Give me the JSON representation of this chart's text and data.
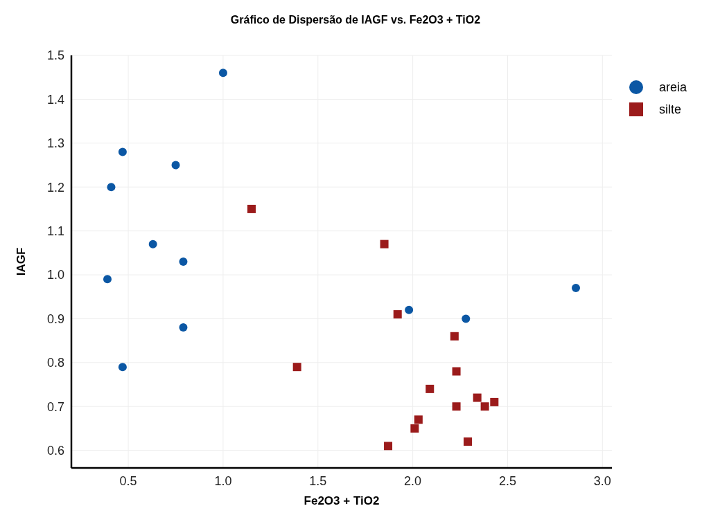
{
  "chart_data": {
    "type": "scatter",
    "title": "Gráfico de Dispersão de IAGF vs. Fe2O3 + TiO2",
    "xlabel": "Fe2O3 + TiO2",
    "ylabel": "IAGF",
    "xlim": [
      0.2,
      3.05
    ],
    "xticks": [
      {
        "value": 0.5,
        "label": "0.5"
      },
      {
        "value": 1,
        "label": "1.0"
      },
      {
        "value": 1.5,
        "label": "1.5"
      },
      {
        "value": 2,
        "label": "2.0"
      },
      {
        "value": 2.5,
        "label": "2.5"
      },
      {
        "value": 3,
        "label": "3.0"
      }
    ],
    "ylim": [
      0.56,
      1.5
    ],
    "yticks": [
      {
        "value": 0.6,
        "label": "0.6"
      },
      {
        "value": 0.7,
        "label": "0.7"
      },
      {
        "value": 0.8,
        "label": "0.8"
      },
      {
        "value": 0.9,
        "label": "0.9"
      },
      {
        "value": 1,
        "label": "1.0"
      },
      {
        "value": 1.1,
        "label": "1.1"
      },
      {
        "value": 1.2,
        "label": "1.2"
      },
      {
        "value": 1.3,
        "label": "1.3"
      },
      {
        "value": 1.4,
        "label": "1.4"
      },
      {
        "value": 1.5,
        "label": "1.5"
      }
    ],
    "grid": true,
    "legend": "top right",
    "series": [
      {
        "name": "areia",
        "color": "#0b57a4",
        "marker": "circle",
        "x": [
          1.0,
          0.47,
          0.75,
          0.41,
          0.63,
          0.79,
          0.39,
          0.79,
          0.47,
          1.98,
          2.28,
          2.86
        ],
        "values": [
          1.46,
          1.28,
          1.25,
          1.2,
          1.07,
          1.03,
          0.99,
          0.88,
          0.79,
          0.92,
          0.9,
          0.97
        ]
      },
      {
        "name": "silte",
        "color": "#9b1b1b",
        "marker": "square",
        "x": [
          1.15,
          1.85,
          1.92,
          2.22,
          1.39,
          2.23,
          2.09,
          2.34,
          2.38,
          2.43,
          2.23,
          2.03,
          2.01,
          1.87,
          2.29
        ],
        "values": [
          1.15,
          1.07,
          0.91,
          0.86,
          0.79,
          0.78,
          0.74,
          0.72,
          0.7,
          0.71,
          0.7,
          0.67,
          0.65,
          0.61,
          0.62
        ]
      }
    ]
  }
}
